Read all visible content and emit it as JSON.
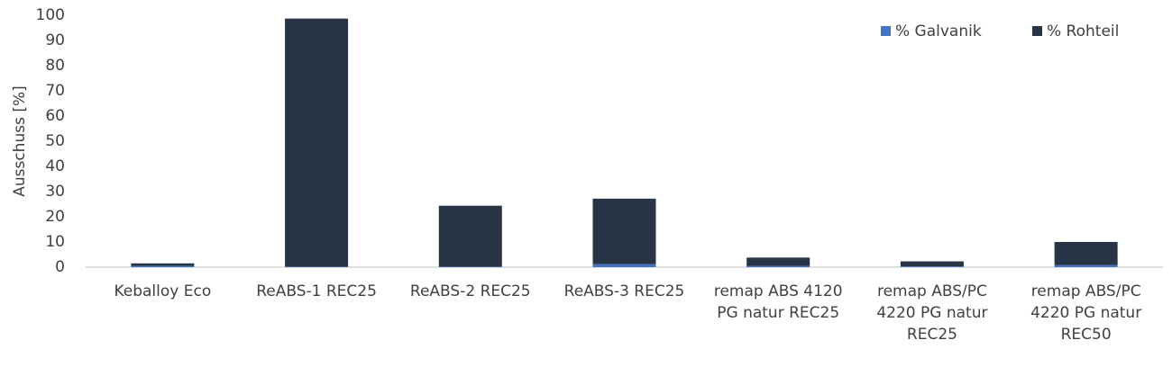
{
  "chart_data": {
    "type": "stacked_bar",
    "y_label": "Ausschuss [%]",
    "categories": [
      "Keballoy Eco",
      "ReABS-1 REC25",
      "ReABS-2 REC25",
      "ReABS-3 REC25",
      "remap ABS 4120 PG natur REC25",
      "remap ABS/PC 4220 PG natur REC25",
      "remap ABS/PC 4220 PG natur REC50"
    ],
    "series": [
      {
        "name": "% Galvanik",
        "color": "#4472c4",
        "values": [
          0.5,
          0.2,
          0.2,
          1.2,
          0.5,
          0.3,
          0.8
        ]
      },
      {
        "name": "% Rohteil",
        "color": "#263445",
        "values": [
          1.0,
          98.5,
          24.2,
          26.0,
          3.3,
          2.0,
          9.2
        ]
      }
    ],
    "ylim": [
      0,
      100
    ],
    "yticks": [
      0,
      10,
      20,
      30,
      40,
      50,
      60,
      70,
      80,
      90,
      100
    ],
    "grid": false,
    "legend": "top-right"
  }
}
